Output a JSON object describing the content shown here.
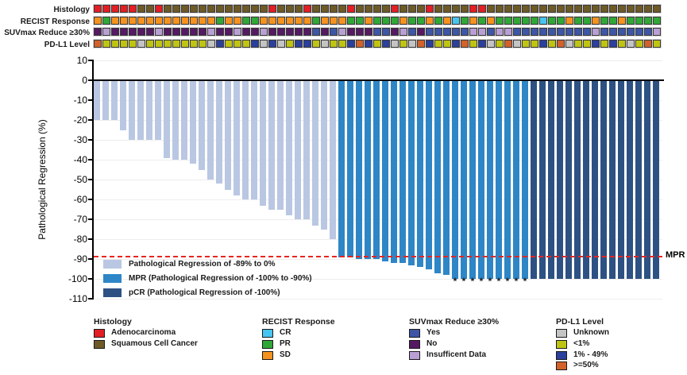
{
  "tracks": {
    "rows": [
      {
        "key": "histology",
        "label": "Histology",
        "sequence": "AAAAASSASSSSSSSSSSSSASSSASSSSASSSSASSSASSSSAASSSSSSSSSSSSSSSSSSSS"
      },
      {
        "key": "recist",
        "label": "RECIST Response",
        "sequence": "OGOOOOOOOOOOOOGOOGGOOOOOOGOOOGGOGGGOGGOGOCGOGOGGGGGCGGOGGOGGOGGGG"
      },
      {
        "key": "suvmax",
        "label": "SUVmax Reduce ≥30%",
        "sequence": "NINNNNNINNNNNINNINNINNNNNYNYINNNYYNIYNYYYYYIIYIIYYYYYYYYYIYYYYYYI"
      },
      {
        "key": "pdl1",
        "label": "PD-L1 Level",
        "sequence": "HLLLLULLLLLLLUBLLLBUBULBBLULLBHBLBULUHBLLBHLBULHULLBLHULLBLBLULHL"
      }
    ],
    "color_maps": {
      "histology": {
        "A": "#e31e24",
        "S": "#6e5a26"
      },
      "recist": {
        "C": "#45c5f0",
        "G": "#2fa836",
        "O": "#f6921e"
      },
      "suvmax": {
        "Y": "#3d56a6",
        "N": "#551a63",
        "I": "#b9a0d4"
      },
      "pdl1": {
        "U": "#c4c4c4",
        "L": "#bfc412",
        "B": "#2b3f9c",
        "H": "#d2622a"
      }
    }
  },
  "chart_data": {
    "type": "bar",
    "subtype": "waterfall",
    "ylabel": "Pathological Regression (%)",
    "ylim": [
      -110,
      10
    ],
    "yticks": [
      10,
      0,
      -10,
      -20,
      -30,
      -40,
      -50,
      -60,
      -70,
      -80,
      -90,
      -100,
      -110
    ],
    "grid": "light-horizontal",
    "values": [
      -20,
      -20,
      -20,
      -25,
      -30,
      -30,
      -30,
      -30,
      -39,
      -40,
      -40,
      -42,
      -45,
      -50,
      -52,
      -55,
      -58,
      -60,
      -60,
      -63,
      -65,
      -65,
      -68,
      -70,
      -70,
      -73,
      -75,
      -80,
      -89,
      -89,
      -90,
      -90,
      -90,
      -91,
      -92,
      -92,
      -93,
      -94,
      -95,
      -97,
      -98,
      -100,
      -100,
      -100,
      -100,
      -100,
      -100,
      -100,
      -100,
      -100,
      -100,
      -100,
      -100,
      -100,
      -100,
      -100,
      -100,
      -100,
      -100,
      -100,
      -100,
      -100,
      -100,
      -100,
      -100
    ],
    "bar_group_counts": {
      "regression": 28,
      "mpr": 22,
      "pcr": 15
    },
    "bar_colors": {
      "regression": "#b9c7e2",
      "mpr": "#2e86c6",
      "pcr": "#2d5183"
    },
    "bar_legend": [
      {
        "group": "regression",
        "label": "Pathological Regression of -89% to 0%"
      },
      {
        "group": "mpr",
        "label": "MPR (Pathological Regression of -100% to -90%)"
      },
      {
        "group": "pcr",
        "label": "pCR (Pathological Regression of -100%)"
      }
    ],
    "mpr_line": {
      "value": -89,
      "label": "MPR",
      "color": "#e8251f"
    },
    "asterisk_columns": [
      42,
      43,
      44,
      45,
      46,
      47,
      48,
      49,
      50
    ],
    "asterisk_symbol": "*"
  },
  "bottom_legends": [
    {
      "title": "Histology",
      "track": "histology",
      "items": [
        {
          "key": "A",
          "label": "Adenocarcinoma"
        },
        {
          "key": "S",
          "label": "Squamous Cell Cancer"
        }
      ]
    },
    {
      "title": "RECIST Response",
      "track": "recist",
      "items": [
        {
          "key": "C",
          "label": "CR"
        },
        {
          "key": "G",
          "label": "PR"
        },
        {
          "key": "O",
          "label": "SD"
        }
      ]
    },
    {
      "title": "SUVmax Reduce ≥30%",
      "track": "suvmax",
      "items": [
        {
          "key": "Y",
          "label": "Yes"
        },
        {
          "key": "N",
          "label": "No"
        },
        {
          "key": "I",
          "label": "Insufficent Data"
        }
      ]
    },
    {
      "title": "PD-L1 Level",
      "track": "pdl1",
      "items": [
        {
          "key": "U",
          "label": "Unknown"
        },
        {
          "key": "L",
          "label": "<1%"
        },
        {
          "key": "B",
          "label": "1% - 49%"
        },
        {
          "key": "H",
          "label": ">=50%"
        }
      ]
    }
  ]
}
